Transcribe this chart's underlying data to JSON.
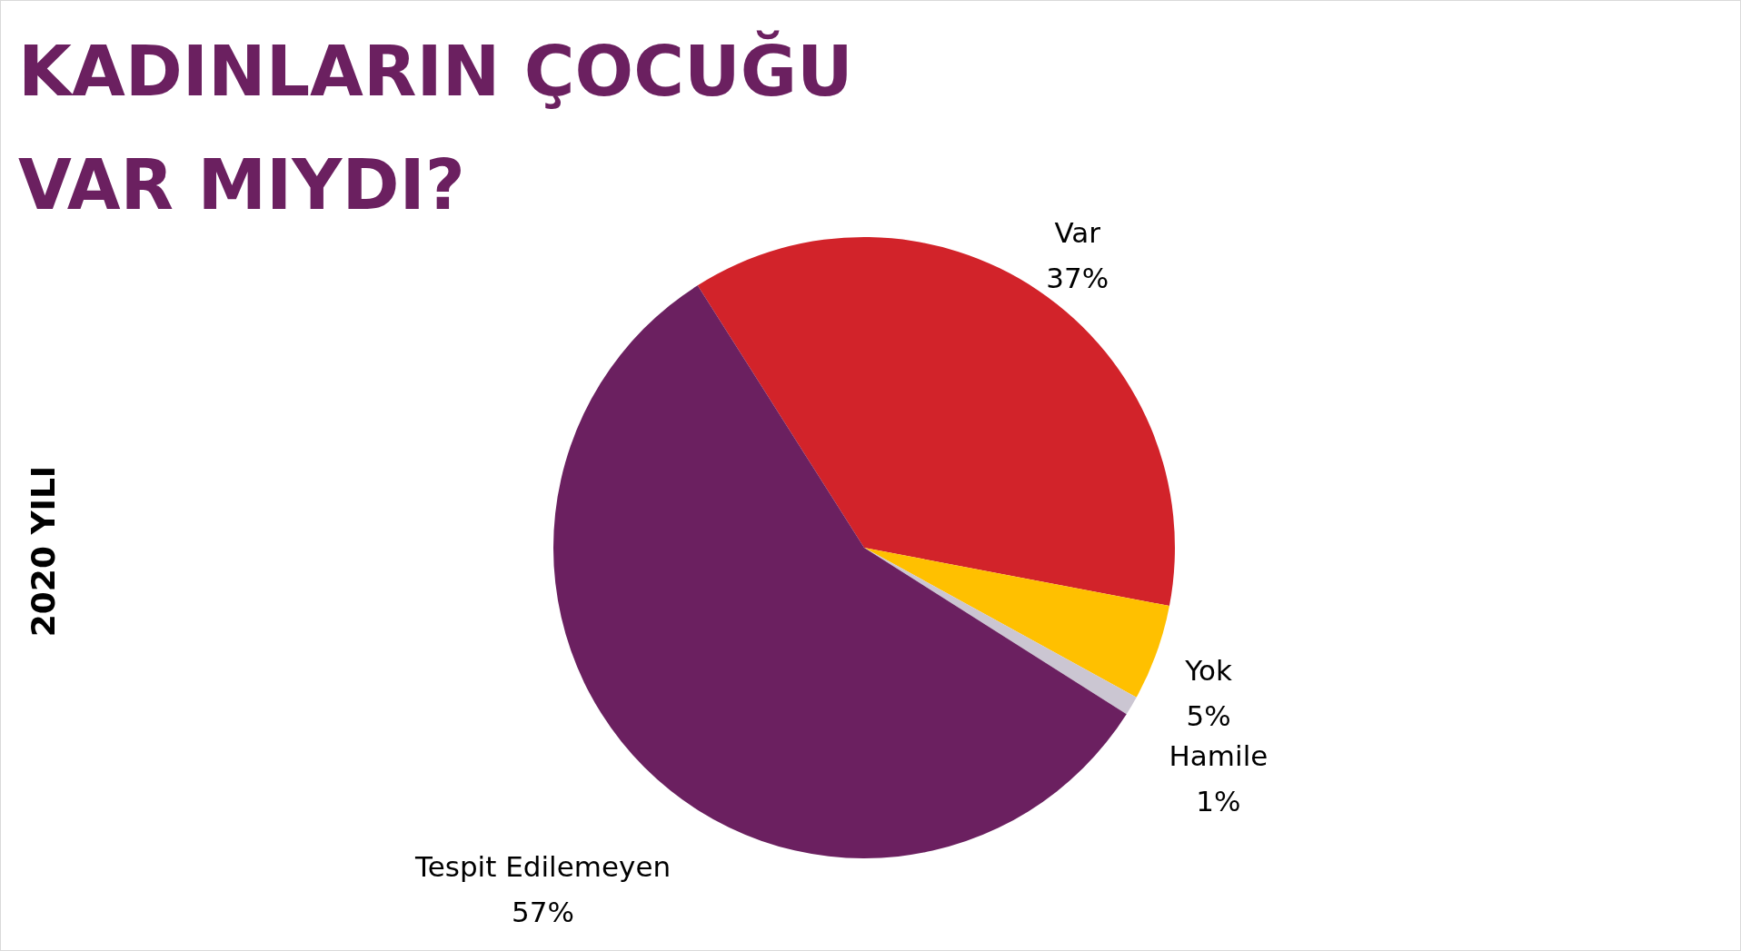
{
  "chart_data": {
    "type": "pie",
    "title": "KADINLARIN ÇOCUĞU VAR MIYDI?",
    "categories": [
      "Var",
      "Yok",
      "Hamile",
      "Tespit Edilemeyen"
    ],
    "values": [
      37,
      5,
      1,
      57
    ],
    "colors": [
      "#d2232a",
      "#ffc000",
      "#cbc6d2",
      "#6b2060"
    ],
    "value_labels": [
      "37%",
      "5%",
      "1%",
      "57%"
    ],
    "annotations": [
      "2020 YILI"
    ]
  }
}
